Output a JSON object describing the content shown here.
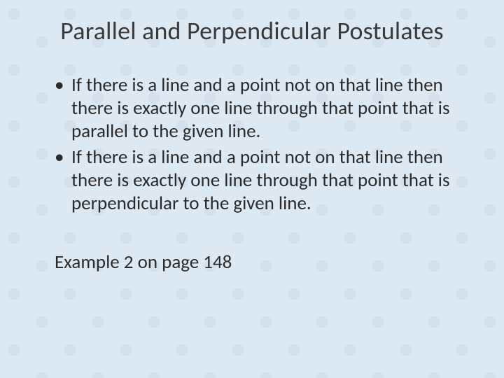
{
  "slide": {
    "title": "Parallel and Perpendicular Postulates",
    "bullets": [
      "If there is a line and a point not on that line then there is exactly one line through that point that is parallel to the given line.",
      "If there is a line and a point not on that line then there is exactly one line through that point that is perpendicular to the given line."
    ],
    "footer": "Example 2 on page 148"
  },
  "style": {
    "background_color": "#dce8f2",
    "pattern_color": "#c8d7e6",
    "title_color": "#3a3a3a",
    "body_color": "#2a2a2a",
    "title_fontsize": 36,
    "body_fontsize": 27,
    "font_family": "Calibri"
  }
}
